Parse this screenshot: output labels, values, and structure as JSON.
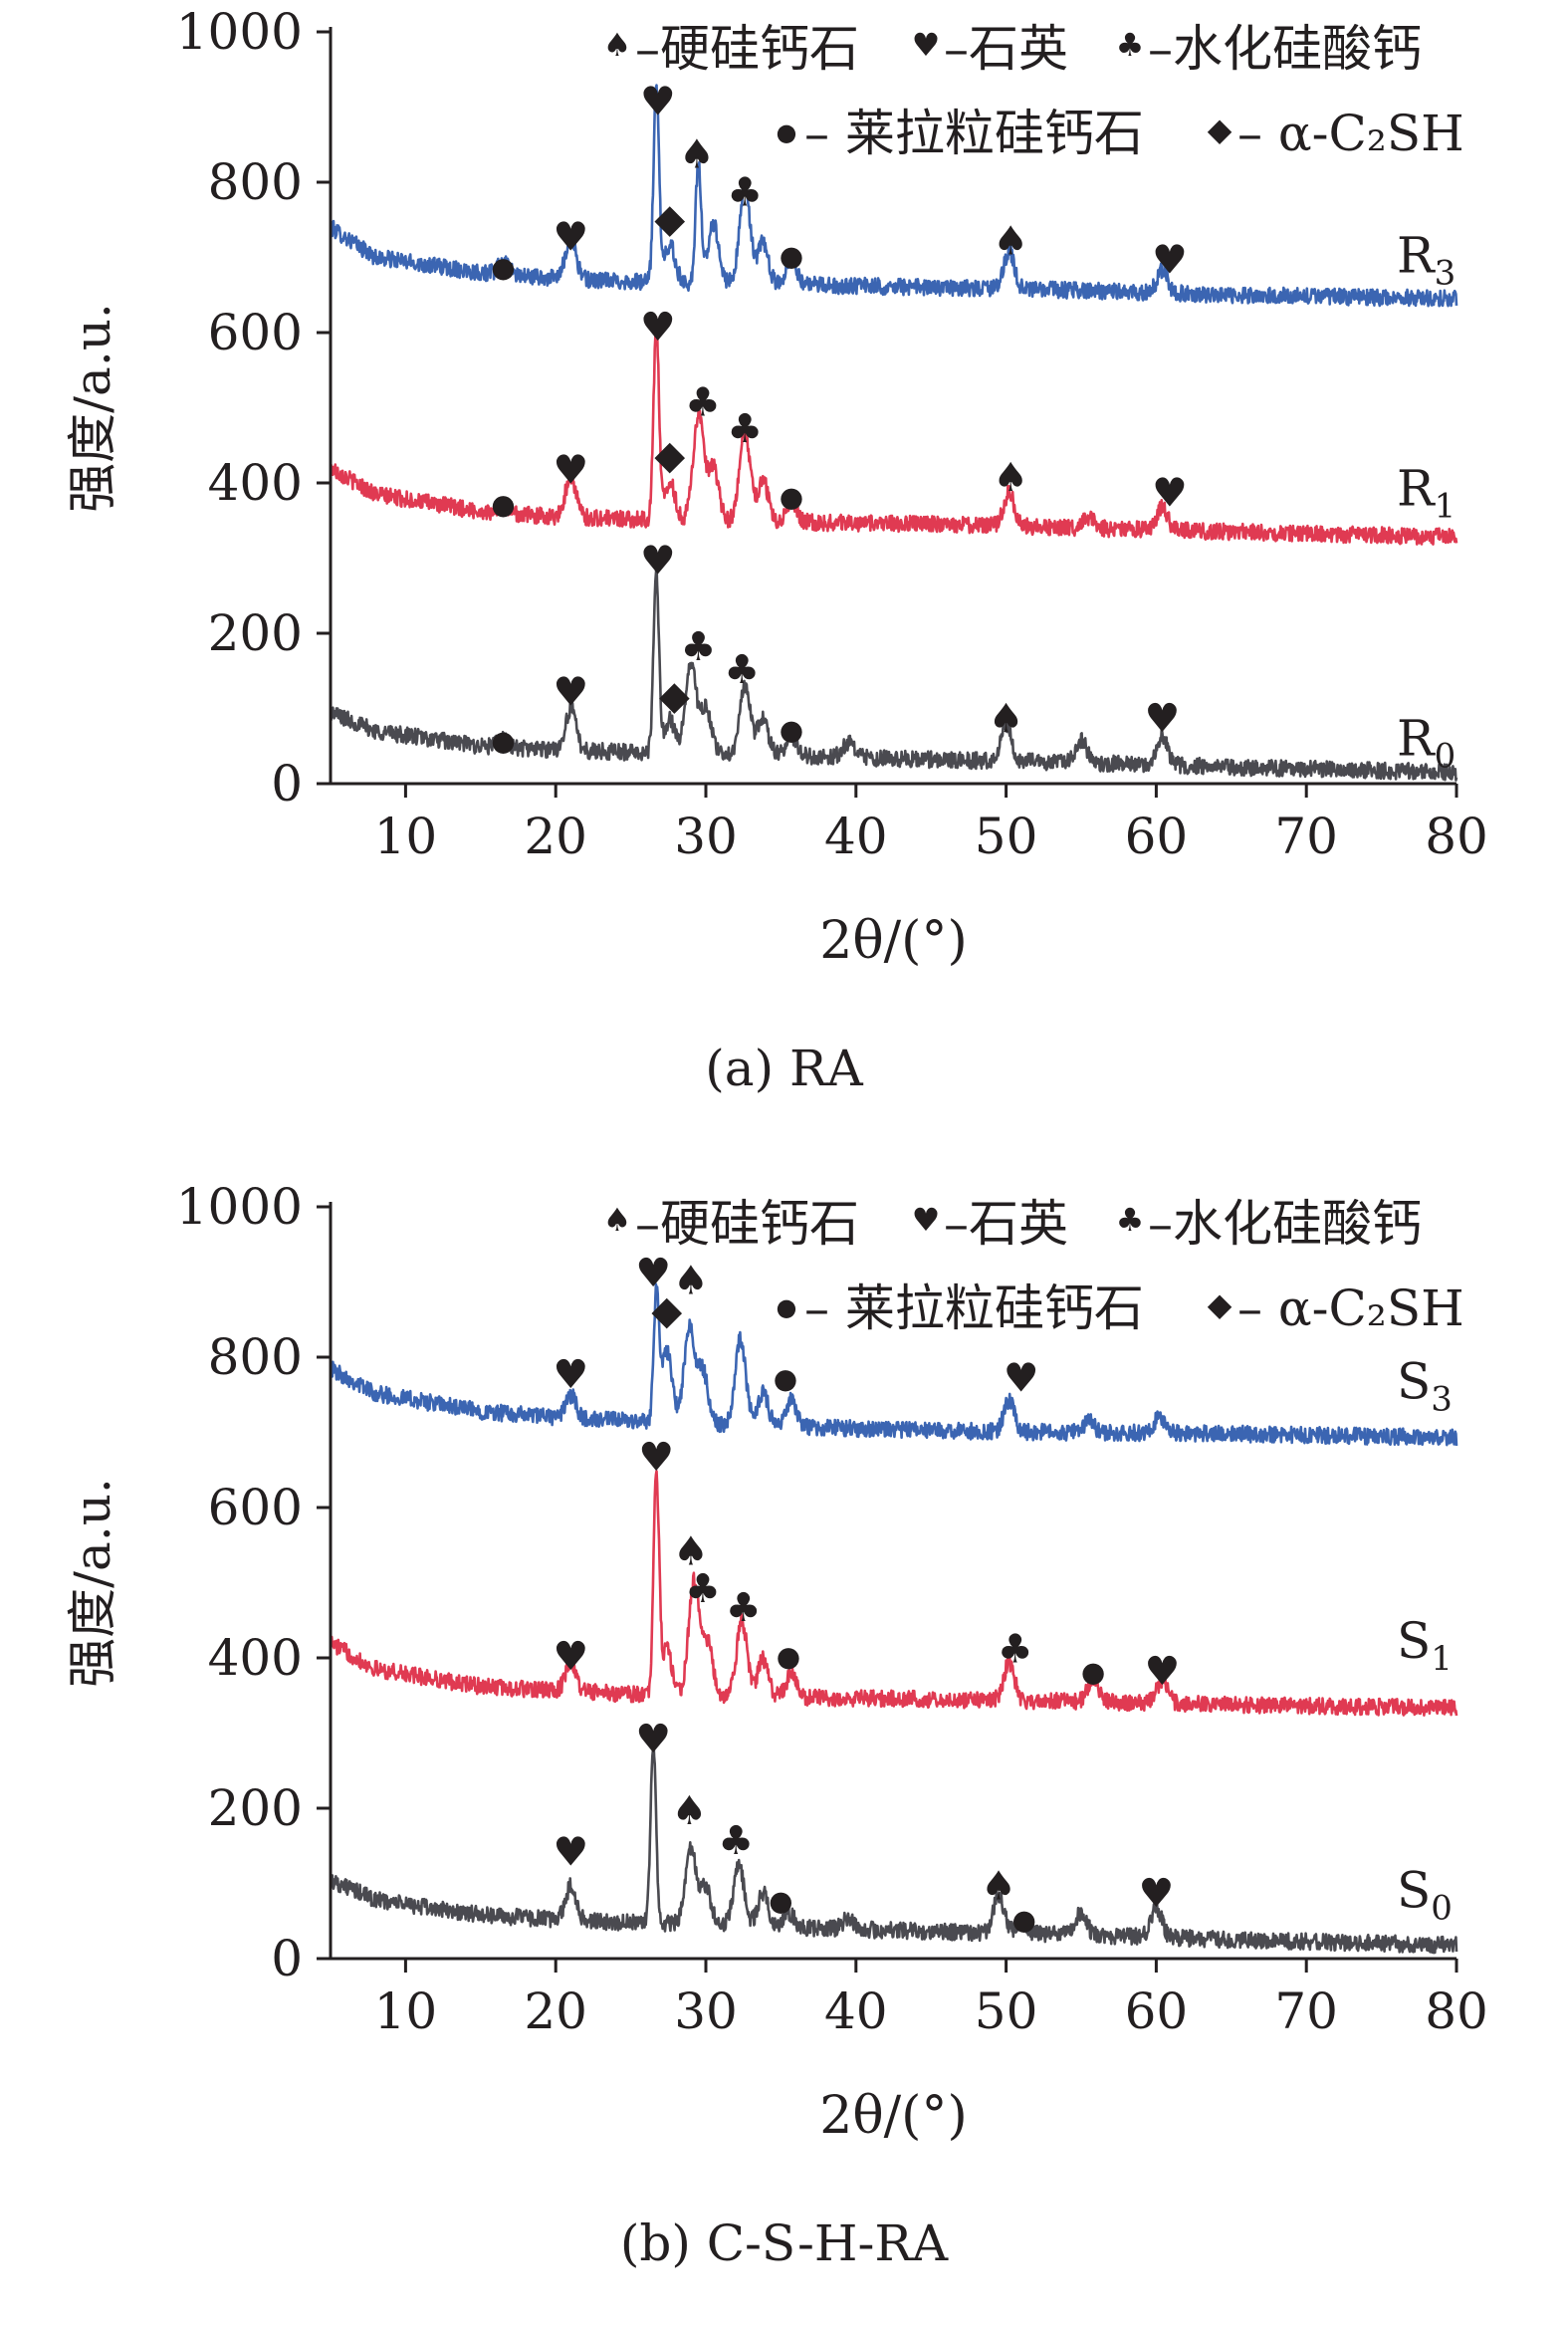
{
  "colors": {
    "R3": "#3b65b2",
    "R1": "#e03a52",
    "R0": "#4a4a50",
    "axis": "#231f20"
  },
  "legend_symbols": {
    "spade": "♠",
    "heart": "♥",
    "club": "♣",
    "dot": "●",
    "diamond": "◆"
  },
  "chart_data": [
    {
      "type": "line",
      "caption": "(a) RA",
      "xlabel": "2θ/(°)",
      "ylabel": "强度/a.u.",
      "xlim": [
        5,
        80
      ],
      "ylim": [
        0,
        1000
      ],
      "xticks": [
        10,
        20,
        30,
        40,
        50,
        60,
        70,
        80
      ],
      "yticks": [
        0,
        200,
        400,
        600,
        800,
        1000
      ],
      "grid": false,
      "legend_position": "top-right",
      "legend": [
        {
          "symbol": "spade",
          "label": "–硬硅钙石"
        },
        {
          "symbol": "heart",
          "label": "–石英"
        },
        {
          "symbol": "club",
          "label": "–水化硅酸钙"
        },
        {
          "symbol": "dot",
          "label": "– 莱拉粒硅钙石"
        },
        {
          "symbol": "diamond",
          "label": "– α-C₂SH"
        }
      ],
      "series": [
        {
          "name": "R₃",
          "color_key": "R3",
          "baseline": [
            [
              5,
              740
            ],
            [
              8,
              700
            ],
            [
              15,
              680
            ],
            [
              20,
              672
            ],
            [
              25,
              668
            ],
            [
              35,
              664
            ],
            [
              45,
              660
            ],
            [
              55,
              656
            ],
            [
              65,
              650
            ],
            [
              80,
              645
            ]
          ],
          "peaks": [
            [
              16.5,
              15
            ],
            [
              21.0,
              55
            ],
            [
              26.7,
              260
            ],
            [
              27.6,
              50
            ],
            [
              29.5,
              160
            ],
            [
              30.5,
              80
            ],
            [
              32.6,
              130
            ],
            [
              33.8,
              55
            ],
            [
              35.7,
              35
            ],
            [
              50.2,
              50
            ],
            [
              60.4,
              30
            ]
          ]
        },
        {
          "name": "R₁",
          "color_key": "R1",
          "baseline": [
            [
              5,
              420
            ],
            [
              8,
              385
            ],
            [
              15,
              362
            ],
            [
              20,
              355
            ],
            [
              25,
              352
            ],
            [
              35,
              348
            ],
            [
              45,
              345
            ],
            [
              55,
              340
            ],
            [
              65,
              335
            ],
            [
              80,
              328
            ]
          ],
          "peaks": [
            [
              16.5,
              10
            ],
            [
              21.0,
              55
            ],
            [
              26.7,
              260
            ],
            [
              27.6,
              50
            ],
            [
              29.5,
              140
            ],
            [
              30.5,
              70
            ],
            [
              32.6,
              120
            ],
            [
              33.8,
              55
            ],
            [
              35.7,
              30
            ],
            [
              50.2,
              45
            ],
            [
              55.5,
              15
            ],
            [
              60.4,
              30
            ]
          ]
        },
        {
          "name": "R₀",
          "color_key": "R0",
          "baseline": [
            [
              5,
              95
            ],
            [
              8,
              70
            ],
            [
              15,
              50
            ],
            [
              20,
              45
            ],
            [
              25,
              42
            ],
            [
              35,
              38
            ],
            [
              45,
              32
            ],
            [
              55,
              28
            ],
            [
              65,
              22
            ],
            [
              80,
              15
            ]
          ],
          "peaks": [
            [
              16.5,
              10
            ],
            [
              21.0,
              55
            ],
            [
              26.7,
              240
            ],
            [
              27.6,
              45
            ],
            [
              29.0,
              120
            ],
            [
              30.0,
              60
            ],
            [
              32.6,
              90
            ],
            [
              33.8,
              50
            ],
            [
              35.7,
              25
            ],
            [
              39.5,
              20
            ],
            [
              50.0,
              50
            ],
            [
              55.0,
              30
            ],
            [
              60.4,
              40
            ]
          ]
        }
      ],
      "series_labels": [
        {
          "text": "R",
          "sub": "3",
          "x": 80,
          "y": 680
        },
        {
          "text": "R",
          "sub": "1",
          "x": 80,
          "y": 370
        },
        {
          "text": "R",
          "sub": "0",
          "x": 80,
          "y": 38
        }
      ],
      "annotations": [
        {
          "symbol": "dot",
          "x": 16.5,
          "y": 690
        },
        {
          "symbol": "heart",
          "x": 21.0,
          "y": 725
        },
        {
          "symbol": "heart",
          "x": 26.8,
          "y": 905
        },
        {
          "symbol": "diamond",
          "x": 27.6,
          "y": 750
        },
        {
          "symbol": "spade",
          "x": 29.4,
          "y": 835
        },
        {
          "symbol": "club",
          "x": 32.6,
          "y": 785
        },
        {
          "symbol": "dot",
          "x": 35.7,
          "y": 705
        },
        {
          "symbol": "spade",
          "x": 50.3,
          "y": 720
        },
        {
          "symbol": "heart",
          "x": 60.9,
          "y": 695
        },
        {
          "symbol": "dot",
          "x": 16.5,
          "y": 375
        },
        {
          "symbol": "heart",
          "x": 21.0,
          "y": 415
        },
        {
          "symbol": "heart",
          "x": 26.8,
          "y": 605
        },
        {
          "symbol": "diamond",
          "x": 27.6,
          "y": 435
        },
        {
          "symbol": "club",
          "x": 29.8,
          "y": 505
        },
        {
          "symbol": "club",
          "x": 32.6,
          "y": 470
        },
        {
          "symbol": "dot",
          "x": 35.7,
          "y": 385
        },
        {
          "symbol": "spade",
          "x": 50.3,
          "y": 405
        },
        {
          "symbol": "heart",
          "x": 60.9,
          "y": 385
        },
        {
          "symbol": "dot",
          "x": 16.5,
          "y": 60
        },
        {
          "symbol": "heart",
          "x": 21.0,
          "y": 120
        },
        {
          "symbol": "heart",
          "x": 26.8,
          "y": 295
        },
        {
          "symbol": "diamond",
          "x": 27.9,
          "y": 115
        },
        {
          "symbol": "club",
          "x": 29.5,
          "y": 180
        },
        {
          "symbol": "club",
          "x": 32.4,
          "y": 150
        },
        {
          "symbol": "dot",
          "x": 35.7,
          "y": 75
        },
        {
          "symbol": "spade",
          "x": 50.0,
          "y": 85
        },
        {
          "symbol": "heart",
          "x": 60.4,
          "y": 85
        }
      ]
    },
    {
      "type": "line",
      "caption": "(b) C-S-H-RA",
      "xlabel": "2θ/(°)",
      "ylabel": "强度/a.u.",
      "xlim": [
        5,
        80
      ],
      "ylim": [
        0,
        1000
      ],
      "xticks": [
        10,
        20,
        30,
        40,
        50,
        60,
        70,
        80
      ],
      "yticks": [
        0,
        200,
        400,
        600,
        800,
        1000
      ],
      "grid": false,
      "legend_position": "top-right",
      "legend": [
        {
          "symbol": "spade",
          "label": "–硬硅钙石"
        },
        {
          "symbol": "heart",
          "label": "–石英"
        },
        {
          "symbol": "club",
          "label": "–水化硅酸钙"
        },
        {
          "symbol": "dot",
          "label": "– 莱拉粒硅钙石"
        },
        {
          "symbol": "diamond",
          "label": "– α-C₂SH"
        }
      ],
      "series": [
        {
          "name": "S₃",
          "color_key": "R3",
          "baseline": [
            [
              5,
              785
            ],
            [
              8,
              752
            ],
            [
              15,
              728
            ],
            [
              20,
              720
            ],
            [
              25,
              715
            ],
            [
              35,
              708
            ],
            [
              45,
              702
            ],
            [
              55,
              700
            ],
            [
              65,
              698
            ],
            [
              80,
              693
            ]
          ],
          "peaks": [
            [
              21.0,
              30
            ],
            [
              26.7,
              165
            ],
            [
              27.4,
              95
            ],
            [
              28.9,
              125
            ],
            [
              29.8,
              70
            ],
            [
              32.3,
              115
            ],
            [
              33.8,
              45
            ],
            [
              35.7,
              35
            ],
            [
              50.2,
              40
            ],
            [
              55.5,
              15
            ],
            [
              60.2,
              20
            ]
          ]
        },
        {
          "name": "S₁",
          "color_key": "R1",
          "baseline": [
            [
              5,
              420
            ],
            [
              8,
              385
            ],
            [
              15,
              362
            ],
            [
              20,
              356
            ],
            [
              25,
              352
            ],
            [
              35,
              348
            ],
            [
              45,
              345
            ],
            [
              55,
              342
            ],
            [
              65,
              338
            ],
            [
              80,
              333
            ]
          ],
          "peaks": [
            [
              21.0,
              40
            ],
            [
              26.7,
              290
            ],
            [
              27.4,
              60
            ],
            [
              29.2,
              150
            ],
            [
              30.1,
              70
            ],
            [
              32.4,
              100
            ],
            [
              33.8,
              50
            ],
            [
              35.7,
              30
            ],
            [
              50.2,
              50
            ],
            [
              55.8,
              30
            ],
            [
              60.4,
              30
            ]
          ]
        },
        {
          "name": "S₀",
          "color_key": "R0",
          "baseline": [
            [
              5,
              105
            ],
            [
              8,
              78
            ],
            [
              15,
              58
            ],
            [
              20,
              52
            ],
            [
              25,
              48
            ],
            [
              35,
              42
            ],
            [
              45,
              36
            ],
            [
              55,
              32
            ],
            [
              65,
              25
            ],
            [
              80,
              18
            ]
          ],
          "peaks": [
            [
              21.0,
              45
            ],
            [
              26.5,
              240
            ],
            [
              29.0,
              100
            ],
            [
              30.0,
              50
            ],
            [
              32.2,
              80
            ],
            [
              33.8,
              45
            ],
            [
              35.5,
              20
            ],
            [
              39.5,
              15
            ],
            [
              49.5,
              50
            ],
            [
              51.0,
              15
            ],
            [
              55.0,
              30
            ],
            [
              60.0,
              40
            ]
          ]
        }
      ],
      "series_labels": [
        {
          "text": "S",
          "sub": "3",
          "x": 80,
          "y": 745
        },
        {
          "text": "S",
          "sub": "1",
          "x": 80,
          "y": 400
        },
        {
          "text": "S",
          "sub": "0",
          "x": 80,
          "y": 68
        }
      ],
      "annotations": [
        {
          "symbol": "heart",
          "x": 21.0,
          "y": 775
        },
        {
          "symbol": "heart",
          "x": 26.5,
          "y": 910
        },
        {
          "symbol": "diamond",
          "x": 27.4,
          "y": 860
        },
        {
          "symbol": "spade",
          "x": 29.0,
          "y": 900
        },
        {
          "symbol": "dot",
          "x": 35.3,
          "y": 775
        },
        {
          "symbol": "heart",
          "x": 51.0,
          "y": 770
        },
        {
          "symbol": "heart",
          "x": 21.0,
          "y": 400
        },
        {
          "symbol": "heart",
          "x": 26.7,
          "y": 665
        },
        {
          "symbol": "spade",
          "x": 29.0,
          "y": 540
        },
        {
          "symbol": "club",
          "x": 29.8,
          "y": 490
        },
        {
          "symbol": "club",
          "x": 32.5,
          "y": 465
        },
        {
          "symbol": "dot",
          "x": 35.5,
          "y": 405
        },
        {
          "symbol": "club",
          "x": 50.6,
          "y": 410
        },
        {
          "symbol": "dot",
          "x": 55.8,
          "y": 385
        },
        {
          "symbol": "heart",
          "x": 60.4,
          "y": 380
        },
        {
          "symbol": "heart",
          "x": 21.0,
          "y": 140
        },
        {
          "symbol": "heart",
          "x": 26.5,
          "y": 290
        },
        {
          "symbol": "spade",
          "x": 28.9,
          "y": 195
        },
        {
          "symbol": "club",
          "x": 32.0,
          "y": 155
        },
        {
          "symbol": "dot",
          "x": 35.0,
          "y": 80
        },
        {
          "symbol": "spade",
          "x": 49.5,
          "y": 95
        },
        {
          "symbol": "dot",
          "x": 51.2,
          "y": 55
        },
        {
          "symbol": "heart",
          "x": 60.0,
          "y": 85
        }
      ]
    }
  ]
}
